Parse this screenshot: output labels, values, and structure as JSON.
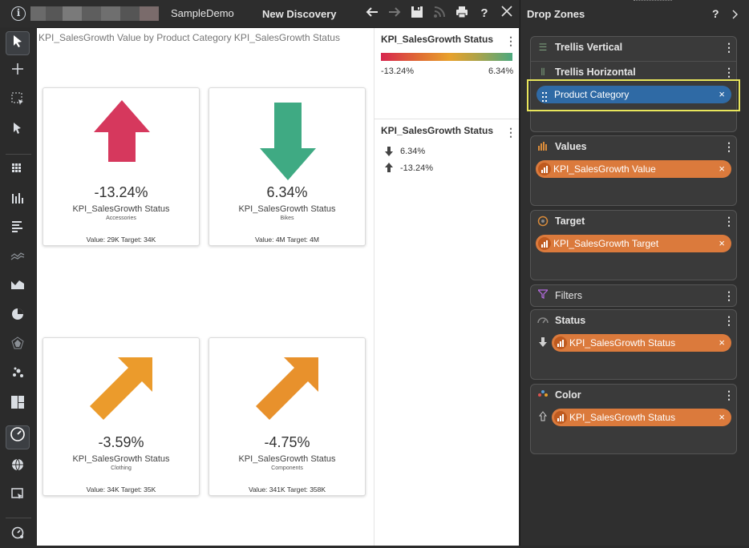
{
  "topbar": {
    "app_title": "SampleDemo",
    "doc_title": "New Discovery",
    "icons": [
      "info-icon",
      "undo-icon",
      "redo-icon",
      "save-icon",
      "rss-icon",
      "print-icon",
      "help-icon",
      "close-icon"
    ]
  },
  "left_toolbar": {
    "icons": [
      "select-pointer-icon",
      "crosshair-icon",
      "marquee-select-icon",
      "drill-pointer-icon",
      "grid-icon",
      "column-chart-icon",
      "bar-chart-icon",
      "line-chart-icon",
      "area-chart-icon",
      "pie-chart-icon",
      "radar-chart-icon",
      "scatter-chart-icon",
      "treemap-icon",
      "gauge-kpi-icon",
      "globe-map-icon",
      "custom-visual-icon",
      "settings-icon"
    ]
  },
  "chart": {
    "title": "KPI_SalesGrowth Value by Product Category KPI_SalesGrowth Status",
    "tiles": [
      {
        "pct": "-13.24%",
        "status": "KPI_SalesGrowth Status",
        "category": "Accessories",
        "value_target": "Value: 29K Target: 34K",
        "arrow": "up",
        "color": "#d6385d"
      },
      {
        "pct": "6.34%",
        "status": "KPI_SalesGrowth Status",
        "category": "Bikes",
        "value_target": "Value: 4M Target: 4M",
        "arrow": "down",
        "color": "#3faa83"
      },
      {
        "pct": "-3.59%",
        "status": "KPI_SalesGrowth Status",
        "category": "Clothing",
        "value_target": "Value: 34K Target: 35K",
        "arrow": "diag",
        "color": "#eb9b2c"
      },
      {
        "pct": "-4.75%",
        "status": "KPI_SalesGrowth Status",
        "category": "Components",
        "value_target": "Value: 341K Target: 358K",
        "arrow": "diag",
        "color": "#e8912c"
      }
    ]
  },
  "legend": {
    "color_title": "KPI_SalesGrowth Status",
    "color_min": "-13.24%",
    "color_max": "6.34%",
    "shape_title": "KPI_SalesGrowth Status",
    "shape_items": [
      {
        "icon": "arrow-down-icon",
        "label": "6.34%"
      },
      {
        "icon": "arrow-up-icon",
        "label": "-13.24%"
      }
    ]
  },
  "drop_zones": {
    "title": "Drop Zones",
    "help": "?",
    "zones": {
      "trellis_vertical": "Trellis Vertical",
      "trellis_horizontal": "Trellis Horizontal",
      "trellis_horizontal_pill": "Product Category",
      "values": "Values",
      "values_pill": "KPI_SalesGrowth Value",
      "target": "Target",
      "target_pill": "KPI_SalesGrowth Target",
      "filters": "Filters",
      "status": "Status",
      "status_pill": "KPI_SalesGrowth Status",
      "color": "Color",
      "color_pill": "KPI_SalesGrowth Status"
    },
    "pill_close": "×"
  }
}
